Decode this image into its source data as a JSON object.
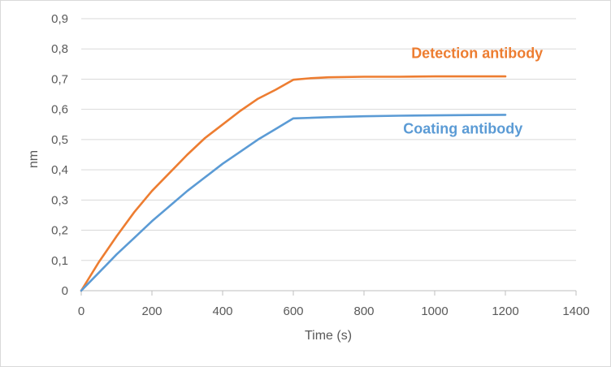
{
  "chart_data": {
    "type": "line",
    "title": "",
    "xlabel": "Time (s)",
    "ylabel": "nm",
    "xlim": [
      0,
      1400
    ],
    "ylim": [
      0,
      0.9
    ],
    "x_ticks": [
      0,
      200,
      400,
      600,
      800,
      1000,
      1200,
      1400
    ],
    "y_ticks": [
      0,
      0.1,
      0.2,
      0.3,
      0.4,
      0.5,
      0.6,
      0.7,
      0.8,
      0.9
    ],
    "y_tick_labels": [
      "0",
      "0,1",
      "0,2",
      "0,3",
      "0,4",
      "0,5",
      "0,6",
      "0,7",
      "0,8",
      "0,9"
    ],
    "x_tick_labels": [
      "0",
      "200",
      "400",
      "600",
      "800",
      "1000",
      "1200",
      "1400"
    ],
    "grid": "horizontal",
    "legend": "inline-labels",
    "series": [
      {
        "name": "Detection antibody",
        "color": "#ED7D31",
        "x": [
          0,
          50,
          100,
          150,
          200,
          250,
          300,
          350,
          400,
          450,
          500,
          550,
          600,
          650,
          700,
          800,
          900,
          1000,
          1100,
          1200
        ],
        "y": [
          0,
          0.095,
          0.18,
          0.26,
          0.33,
          0.39,
          0.45,
          0.505,
          0.55,
          0.595,
          0.635,
          0.665,
          0.698,
          0.703,
          0.706,
          0.708,
          0.708,
          0.709,
          0.709,
          0.709
        ]
      },
      {
        "name": "Coating antibody",
        "color": "#5B9BD5",
        "x": [
          0,
          50,
          100,
          150,
          200,
          250,
          300,
          350,
          400,
          450,
          500,
          550,
          600,
          650,
          700,
          800,
          900,
          1000,
          1100,
          1200
        ],
        "y": [
          0,
          0.06,
          0.12,
          0.175,
          0.23,
          0.28,
          0.33,
          0.375,
          0.42,
          0.46,
          0.5,
          0.535,
          0.57,
          0.572,
          0.574,
          0.577,
          0.579,
          0.58,
          0.581,
          0.582
        ]
      }
    ]
  }
}
